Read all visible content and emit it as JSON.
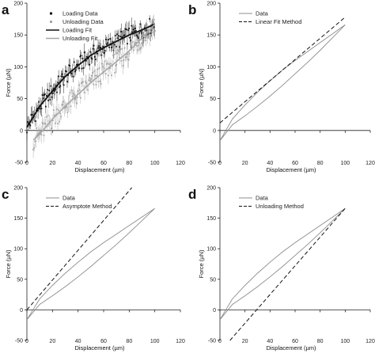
{
  "chart_data": [
    {
      "panel": "a",
      "type": "scatter",
      "xlabel": "Displacement (µm)",
      "ylabel": "Force (µN)",
      "xlim": [
        0,
        120
      ],
      "ylim": [
        -50,
        200
      ],
      "xticks": [
        0,
        20,
        40,
        60,
        80,
        100,
        120
      ],
      "yticks": [
        -50,
        0,
        50,
        100,
        150,
        200
      ],
      "legend_position": "top-left",
      "series": [
        {
          "name": "Loading Data",
          "kind": "points",
          "color": "#111111",
          "x": [
            0,
            10,
            20,
            30,
            40,
            50,
            60,
            70,
            80,
            90,
            100
          ],
          "y": [
            5,
            38,
            62,
            85,
            102,
            118,
            130,
            140,
            150,
            158,
            167
          ]
        },
        {
          "name": "Unloading Data",
          "kind": "points",
          "color": "#a6a6a6",
          "x": [
            5,
            10,
            20,
            30,
            40,
            50,
            60,
            70,
            80,
            90,
            100
          ],
          "y": [
            -15,
            -6,
            18,
            38,
            57,
            75,
            92,
            108,
            125,
            145,
            167
          ]
        },
        {
          "name": "Loading Fit",
          "kind": "line",
          "color": "#111111",
          "x": [
            0,
            10,
            20,
            30,
            40,
            50,
            60,
            70,
            80,
            90,
            100
          ],
          "y": [
            5,
            38,
            62,
            85,
            102,
            118,
            130,
            140,
            150,
            158,
            167
          ]
        },
        {
          "name": "Unloading Fit",
          "kind": "line",
          "color": "#a6a6a6",
          "x": [
            5,
            10,
            20,
            30,
            40,
            50,
            60,
            70,
            80,
            90,
            100
          ],
          "y": [
            -15,
            -6,
            18,
            38,
            57,
            75,
            92,
            108,
            125,
            145,
            167
          ]
        }
      ]
    },
    {
      "panel": "b",
      "type": "line",
      "xlabel": "Displacement (µm)",
      "ylabel": "Force (µN)",
      "xlim": [
        0,
        120
      ],
      "ylim": [
        -50,
        200
      ],
      "xticks": [
        0,
        20,
        40,
        60,
        80,
        100,
        120
      ],
      "yticks": [
        -50,
        0,
        50,
        100,
        150,
        200
      ],
      "legend_position": "top-left",
      "series": [
        {
          "name": "Data",
          "kind": "loop",
          "color": "#8c8c8c",
          "x": [
            0,
            10,
            20,
            30,
            40,
            50,
            60,
            70,
            80,
            90,
            100,
            90,
            80,
            70,
            60,
            50,
            40,
            30,
            20,
            10,
            0
          ],
          "y": [
            -16,
            18,
            40,
            60,
            78,
            95,
            110,
            124,
            138,
            152,
            166,
            146,
            126,
            107,
            89,
            71,
            54,
            38,
            23,
            9,
            -16
          ]
        },
        {
          "name": "Linear Fit Method",
          "kind": "dashed",
          "color": "#111111",
          "x": [
            0,
            100
          ],
          "y": [
            12,
            178
          ]
        }
      ]
    },
    {
      "panel": "c",
      "type": "line",
      "xlabel": "Displacement (µm)",
      "ylabel": "Force (µN)",
      "xlim": [
        0,
        120
      ],
      "ylim": [
        -50,
        200
      ],
      "xticks": [
        0,
        20,
        40,
        60,
        80,
        100,
        120
      ],
      "yticks": [
        -50,
        0,
        50,
        100,
        150,
        200
      ],
      "legend_position": "top-left",
      "series": [
        {
          "name": "Data",
          "kind": "loop",
          "color": "#8c8c8c",
          "x": [
            0,
            10,
            20,
            30,
            40,
            50,
            60,
            70,
            80,
            90,
            100,
            90,
            80,
            70,
            60,
            50,
            40,
            30,
            20,
            10,
            0
          ],
          "y": [
            -16,
            18,
            40,
            60,
            78,
            95,
            110,
            124,
            138,
            152,
            166,
            146,
            126,
            107,
            89,
            71,
            54,
            38,
            23,
            9,
            -16
          ]
        },
        {
          "name": "Asymptote Method",
          "kind": "dashed",
          "color": "#111111",
          "x": [
            0,
            82
          ],
          "y": [
            0,
            200
          ]
        }
      ]
    },
    {
      "panel": "d",
      "type": "line",
      "xlabel": "Displacement (µm)",
      "ylabel": "Force (µN)",
      "xlim": [
        0,
        120
      ],
      "ylim": [
        -50,
        200
      ],
      "xticks": [
        0,
        20,
        40,
        60,
        80,
        100,
        120
      ],
      "yticks": [
        -50,
        0,
        50,
        100,
        150,
        200
      ],
      "legend_position": "top-left",
      "series": [
        {
          "name": "Data",
          "kind": "loop",
          "color": "#8c8c8c",
          "x": [
            0,
            10,
            20,
            30,
            40,
            50,
            60,
            70,
            80,
            90,
            100,
            90,
            80,
            70,
            60,
            50,
            40,
            30,
            20,
            10,
            0
          ],
          "y": [
            -16,
            18,
            40,
            60,
            78,
            95,
            110,
            124,
            138,
            152,
            166,
            146,
            126,
            107,
            89,
            71,
            54,
            38,
            23,
            9,
            -16
          ]
        },
        {
          "name": "Unloading Method",
          "kind": "dashed",
          "color": "#111111",
          "x": [
            8,
            100
          ],
          "y": [
            -50,
            166
          ]
        }
      ]
    }
  ]
}
